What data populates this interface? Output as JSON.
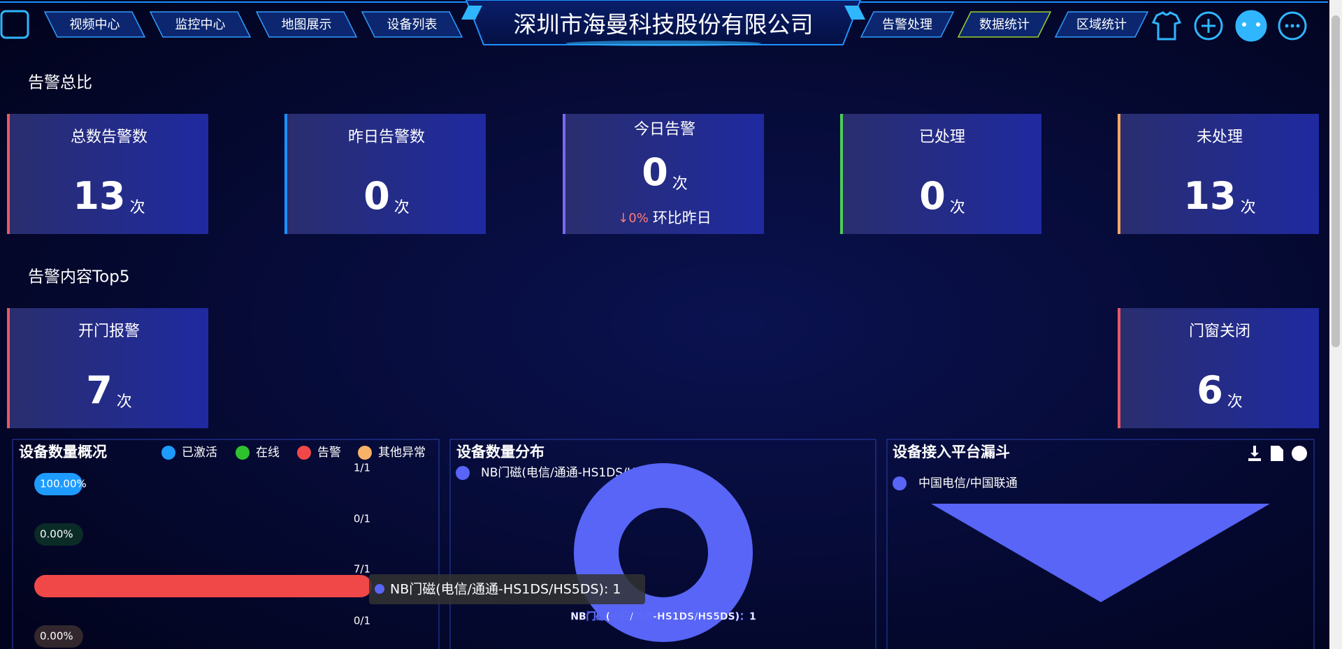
{
  "header": {
    "title": "深圳市海曼科技股份有限公司",
    "nav_left": [
      "视频中心",
      "监控中心",
      "地图展示",
      "设备列表"
    ],
    "nav_right": [
      "告警处理",
      "数据统计",
      "区域统计"
    ]
  },
  "summary": {
    "title": "告警总比",
    "unit": "次",
    "cards": [
      {
        "label": "总数告警数",
        "value": 13,
        "color": "#e85a64"
      },
      {
        "label": "昨日告警数",
        "value": 0,
        "color": "#1e90ff"
      },
      {
        "label": "今日告警",
        "value": 0,
        "color": "#7b68ee",
        "change": {
          "text": "↓0%",
          "label": "环比昨日"
        }
      },
      {
        "label": "已处理",
        "value": 0,
        "color": "#4ccd5a"
      },
      {
        "label": "未处理",
        "value": 13,
        "color": "#f4a860"
      }
    ]
  },
  "top5": {
    "title": "告警内容Top5",
    "unit": "次",
    "cards": [
      {
        "label": "开门报警",
        "value": 7,
        "color": "#e85a64"
      },
      {
        "label": "门窗关闭",
        "value": 6,
        "color": "#e85a64"
      }
    ]
  },
  "overview": {
    "title": "设备数量概况",
    "rows": [
      {
        "name": "已激活",
        "color": "#1e9bff",
        "ratio": "1/1",
        "percent": 100,
        "percent_label": "100.00%"
      },
      {
        "name": "在线",
        "color": "#2fc22f",
        "ratio": "0/1",
        "percent": 0,
        "percent_label": "0.00%"
      },
      {
        "name": "告警",
        "color": "#f04848",
        "ratio": "7/1",
        "percent": 700
      },
      {
        "name": "其他异常",
        "color": "#f7b267",
        "ratio": "0/1",
        "percent": 0,
        "percent_label": "0.00%"
      }
    ]
  },
  "distribution": {
    "title": "设备数量分布",
    "series": [
      {
        "name": "NB门磁(电信/通通-HS1DS/HS5DS)",
        "value": 1,
        "color": "#5865f7",
        "label": "NB门磁(电信/通通-HS1DS/HS5DS)：1"
      }
    ],
    "tooltip": "NB门磁(电信/通通-HS1DS/HS5DS): 1"
  },
  "funnel": {
    "title": "设备接入平台漏斗",
    "legend": [
      "中国电信/中国联通"
    ],
    "color": "#5865f7"
  }
}
